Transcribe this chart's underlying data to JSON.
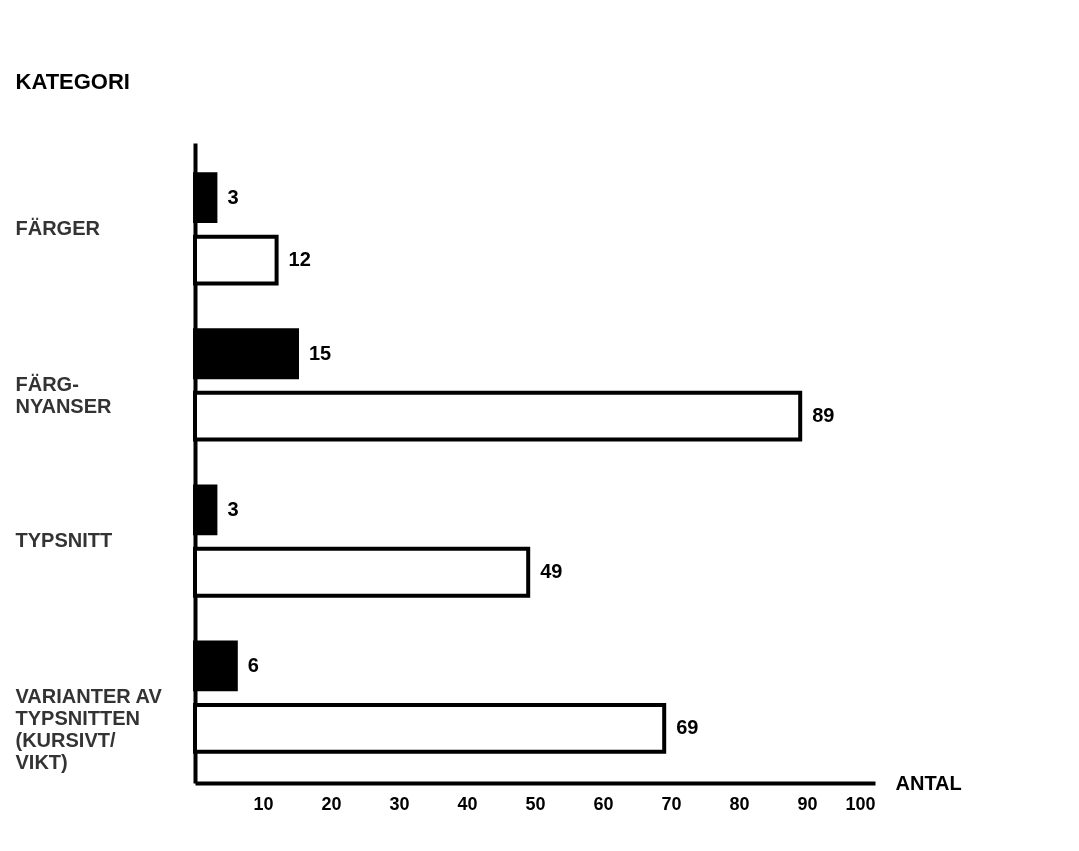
{
  "chart_data": {
    "type": "bar",
    "orientation": "horizontal",
    "ylabel": "KATEGORI",
    "xlabel": "ANTAL",
    "categories": [
      "FÄRGER",
      "FÄRG-\nNYANSER",
      "TYPSNITT",
      "VARIANTER AV\nTYPSNITTEN\n(KURSIVT/\nVIKT)"
    ],
    "series": [
      {
        "color": "#000000",
        "values": [
          3,
          15,
          3,
          6
        ]
      },
      {
        "color": "#ffffff",
        "values": [
          12,
          89,
          49,
          69
        ]
      }
    ],
    "xlim": [
      0,
      100
    ],
    "xticks": [
      10,
      20,
      30,
      40,
      50,
      60,
      70,
      80,
      90,
      100
    ],
    "data_labels": true,
    "grid": false,
    "legend": false
  }
}
